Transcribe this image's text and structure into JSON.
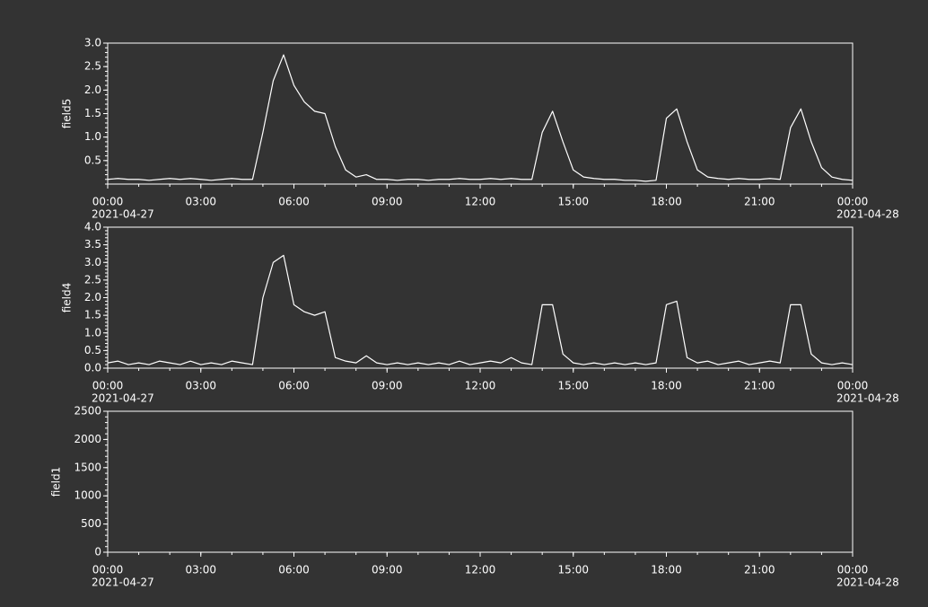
{
  "chart_data": [
    {
      "type": "line",
      "ylabel": "field5",
      "color": "#ffffff",
      "x": [
        "2021-04-27T00:00",
        "2021-04-27T00:20",
        "2021-04-27T00:40",
        "2021-04-27T01:00",
        "2021-04-27T01:20",
        "2021-04-27T01:40",
        "2021-04-27T02:00",
        "2021-04-27T02:20",
        "2021-04-27T02:40",
        "2021-04-27T03:00",
        "2021-04-27T03:20",
        "2021-04-27T03:40",
        "2021-04-27T04:00",
        "2021-04-27T04:20",
        "2021-04-27T04:40",
        "2021-04-27T05:00",
        "2021-04-27T05:20",
        "2021-04-27T05:40",
        "2021-04-27T06:00",
        "2021-04-27T06:20",
        "2021-04-27T06:40",
        "2021-04-27T07:00",
        "2021-04-27T07:20",
        "2021-04-27T07:40",
        "2021-04-27T08:00",
        "2021-04-27T08:20",
        "2021-04-27T08:40",
        "2021-04-27T09:00",
        "2021-04-27T09:20",
        "2021-04-27T09:40",
        "2021-04-27T10:00",
        "2021-04-27T10:20",
        "2021-04-27T10:40",
        "2021-04-27T11:00",
        "2021-04-27T11:20",
        "2021-04-27T11:40",
        "2021-04-27T12:00",
        "2021-04-27T12:20",
        "2021-04-27T12:40",
        "2021-04-27T13:00",
        "2021-04-27T13:20",
        "2021-04-27T13:40",
        "2021-04-27T14:00",
        "2021-04-27T14:20",
        "2021-04-27T14:40",
        "2021-04-27T15:00",
        "2021-04-27T15:20",
        "2021-04-27T15:40",
        "2021-04-27T16:00",
        "2021-04-27T16:20",
        "2021-04-27T16:40",
        "2021-04-27T17:00",
        "2021-04-27T17:20",
        "2021-04-27T17:40",
        "2021-04-27T18:00",
        "2021-04-27T18:20",
        "2021-04-27T18:40",
        "2021-04-27T19:00",
        "2021-04-27T19:20",
        "2021-04-27T19:40",
        "2021-04-27T20:00",
        "2021-04-27T20:20",
        "2021-04-27T20:40",
        "2021-04-27T21:00",
        "2021-04-27T21:20",
        "2021-04-27T21:40",
        "2021-04-27T22:00",
        "2021-04-27T22:20",
        "2021-04-27T22:40",
        "2021-04-27T23:00",
        "2021-04-27T23:20",
        "2021-04-27T23:40",
        "2021-04-28T00:00"
      ],
      "values": [
        0.1,
        0.12,
        0.1,
        0.1,
        0.08,
        0.1,
        0.12,
        0.1,
        0.12,
        0.1,
        0.08,
        0.1,
        0.12,
        0.1,
        0.1,
        1.1,
        2.2,
        2.75,
        2.1,
        1.75,
        1.55,
        1.5,
        0.8,
        0.3,
        0.15,
        0.2,
        0.1,
        0.1,
        0.08,
        0.1,
        0.1,
        0.08,
        0.1,
        0.1,
        0.12,
        0.1,
        0.1,
        0.12,
        0.1,
        0.12,
        0.1,
        0.1,
        1.1,
        1.55,
        0.9,
        0.3,
        0.15,
        0.12,
        0.1,
        0.1,
        0.08,
        0.08,
        0.06,
        0.08,
        1.4,
        1.6,
        0.9,
        0.3,
        0.15,
        0.12,
        0.1,
        0.12,
        0.1,
        0.1,
        0.12,
        0.1,
        1.2,
        1.6,
        0.9,
        0.35,
        0.15,
        0.1,
        0.08
      ],
      "xlim": [
        "2021-04-27T00:00",
        "2021-04-28T00:00"
      ],
      "xticks": [
        {
          "value": "2021-04-27T00:00",
          "label": "00:00"
        },
        {
          "value": "2021-04-27T03:00",
          "label": "03:00"
        },
        {
          "value": "2021-04-27T06:00",
          "label": "06:00"
        },
        {
          "value": "2021-04-27T09:00",
          "label": "09:00"
        },
        {
          "value": "2021-04-27T12:00",
          "label": "12:00"
        },
        {
          "value": "2021-04-27T15:00",
          "label": "15:00"
        },
        {
          "value": "2021-04-27T18:00",
          "label": "18:00"
        },
        {
          "value": "2021-04-27T21:00",
          "label": "21:00"
        },
        {
          "value": "2021-04-28T00:00",
          "label": "00:00"
        }
      ],
      "x_date_labels": [
        {
          "value": "2021-04-27T00:00",
          "label": "2021-04-27"
        },
        {
          "value": "2021-04-28T00:00",
          "label": "2021-04-28"
        }
      ],
      "ylim": [
        0,
        3
      ],
      "yticks": [
        {
          "value": 0.5,
          "label": "0.5"
        },
        {
          "value": 1,
          "label": "1.0"
        },
        {
          "value": 1.5,
          "label": "1.5"
        },
        {
          "value": 2,
          "label": "2.0"
        },
        {
          "value": 2.5,
          "label": "2.5"
        },
        {
          "value": 3,
          "label": "3.0"
        }
      ]
    },
    {
      "type": "line",
      "ylabel": "field4",
      "color": "#ffffff",
      "x": [
        "2021-04-27T00:00",
        "2021-04-27T00:20",
        "2021-04-27T00:40",
        "2021-04-27T01:00",
        "2021-04-27T01:20",
        "2021-04-27T01:40",
        "2021-04-27T02:00",
        "2021-04-27T02:20",
        "2021-04-27T02:40",
        "2021-04-27T03:00",
        "2021-04-27T03:20",
        "2021-04-27T03:40",
        "2021-04-27T04:00",
        "2021-04-27T04:20",
        "2021-04-27T04:40",
        "2021-04-27T05:00",
        "2021-04-27T05:20",
        "2021-04-27T05:40",
        "2021-04-27T06:00",
        "2021-04-27T06:20",
        "2021-04-27T06:40",
        "2021-04-27T07:00",
        "2021-04-27T07:20",
        "2021-04-27T07:40",
        "2021-04-27T08:00",
        "2021-04-27T08:20",
        "2021-04-27T08:40",
        "2021-04-27T09:00",
        "2021-04-27T09:20",
        "2021-04-27T09:40",
        "2021-04-27T10:00",
        "2021-04-27T10:20",
        "2021-04-27T10:40",
        "2021-04-27T11:00",
        "2021-04-27T11:20",
        "2021-04-27T11:40",
        "2021-04-27T12:00",
        "2021-04-27T12:20",
        "2021-04-27T12:40",
        "2021-04-27T13:00",
        "2021-04-27T13:20",
        "2021-04-27T13:40",
        "2021-04-27T14:00",
        "2021-04-27T14:20",
        "2021-04-27T14:40",
        "2021-04-27T15:00",
        "2021-04-27T15:20",
        "2021-04-27T15:40",
        "2021-04-27T16:00",
        "2021-04-27T16:20",
        "2021-04-27T16:40",
        "2021-04-27T17:00",
        "2021-04-27T17:20",
        "2021-04-27T17:40",
        "2021-04-27T18:00",
        "2021-04-27T18:20",
        "2021-04-27T18:40",
        "2021-04-27T19:00",
        "2021-04-27T19:20",
        "2021-04-27T19:40",
        "2021-04-27T20:00",
        "2021-04-27T20:20",
        "2021-04-27T20:40",
        "2021-04-27T21:00",
        "2021-04-27T21:20",
        "2021-04-27T21:40",
        "2021-04-27T22:00",
        "2021-04-27T22:20",
        "2021-04-27T22:40",
        "2021-04-27T23:00",
        "2021-04-27T23:20",
        "2021-04-27T23:40",
        "2021-04-28T00:00"
      ],
      "values": [
        0.15,
        0.2,
        0.1,
        0.15,
        0.1,
        0.2,
        0.15,
        0.1,
        0.2,
        0.1,
        0.15,
        0.1,
        0.2,
        0.15,
        0.1,
        2.0,
        3.0,
        3.2,
        1.8,
        1.6,
        1.5,
        1.6,
        0.3,
        0.2,
        0.15,
        0.35,
        0.15,
        0.1,
        0.15,
        0.1,
        0.15,
        0.1,
        0.15,
        0.1,
        0.2,
        0.1,
        0.15,
        0.2,
        0.15,
        0.3,
        0.15,
        0.1,
        1.8,
        1.8,
        0.4,
        0.15,
        0.1,
        0.15,
        0.1,
        0.15,
        0.1,
        0.15,
        0.1,
        0.15,
        1.8,
        1.9,
        0.3,
        0.15,
        0.2,
        0.1,
        0.15,
        0.2,
        0.1,
        0.15,
        0.2,
        0.15,
        1.8,
        1.8,
        0.4,
        0.15,
        0.1,
        0.15,
        0.1
      ],
      "xlim": [
        "2021-04-27T00:00",
        "2021-04-28T00:00"
      ],
      "xticks": [
        {
          "value": "2021-04-27T00:00",
          "label": "00:00"
        },
        {
          "value": "2021-04-27T03:00",
          "label": "03:00"
        },
        {
          "value": "2021-04-27T06:00",
          "label": "06:00"
        },
        {
          "value": "2021-04-27T09:00",
          "label": "09:00"
        },
        {
          "value": "2021-04-27T12:00",
          "label": "12:00"
        },
        {
          "value": "2021-04-27T15:00",
          "label": "15:00"
        },
        {
          "value": "2021-04-27T18:00",
          "label": "18:00"
        },
        {
          "value": "2021-04-27T21:00",
          "label": "21:00"
        },
        {
          "value": "2021-04-28T00:00",
          "label": "00:00"
        }
      ],
      "x_date_labels": [
        {
          "value": "2021-04-27T00:00",
          "label": "2021-04-27"
        },
        {
          "value": "2021-04-28T00:00",
          "label": "2021-04-28"
        }
      ],
      "ylim": [
        0,
        4
      ],
      "yticks": [
        {
          "value": 0,
          "label": "0.0"
        },
        {
          "value": 0.5,
          "label": "0.5"
        },
        {
          "value": 1,
          "label": "1.0"
        },
        {
          "value": 1.5,
          "label": "1.5"
        },
        {
          "value": 2,
          "label": "2.0"
        },
        {
          "value": 2.5,
          "label": "2.5"
        },
        {
          "value": 3,
          "label": "3.0"
        },
        {
          "value": 3.5,
          "label": "3.5"
        },
        {
          "value": 4,
          "label": "4.0"
        }
      ]
    },
    {
      "type": "line",
      "ylabel": "field1",
      "color": "#ffffff",
      "x": [],
      "values": [],
      "xlim": [
        "2021-04-27T00:00",
        "2021-04-28T00:00"
      ],
      "xticks": [
        {
          "value": "2021-04-27T00:00",
          "label": "00:00"
        },
        {
          "value": "2021-04-27T03:00",
          "label": "03:00"
        },
        {
          "value": "2021-04-27T06:00",
          "label": "06:00"
        },
        {
          "value": "2021-04-27T09:00",
          "label": "09:00"
        },
        {
          "value": "2021-04-27T12:00",
          "label": "12:00"
        },
        {
          "value": "2021-04-27T15:00",
          "label": "15:00"
        },
        {
          "value": "2021-04-27T18:00",
          "label": "18:00"
        },
        {
          "value": "2021-04-27T21:00",
          "label": "21:00"
        },
        {
          "value": "2021-04-28T00:00",
          "label": "00:00"
        }
      ],
      "x_date_labels": [
        {
          "value": "2021-04-27T00:00",
          "label": "2021-04-27"
        },
        {
          "value": "2021-04-28T00:00",
          "label": "2021-04-28"
        }
      ],
      "ylim": [
        0,
        2500
      ],
      "yticks": [
        0,
        500,
        1000,
        1500,
        2000,
        2500
      ]
    }
  ]
}
